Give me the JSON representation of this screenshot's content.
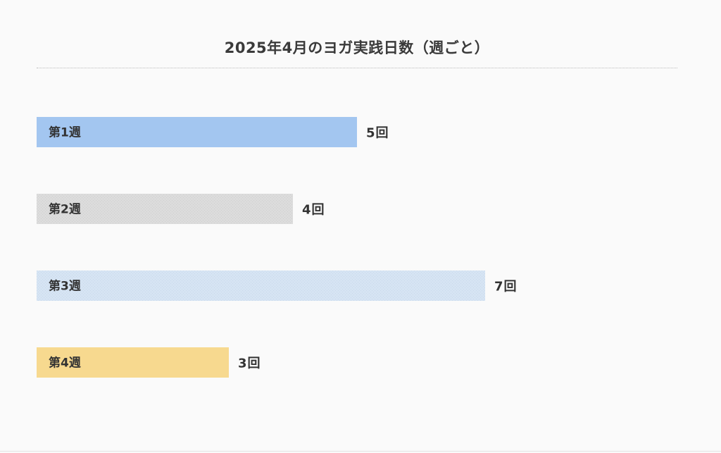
{
  "chart_data": {
    "type": "bar",
    "orientation": "horizontal",
    "title": "2025年4月のヨガ実践日数（週ごと）",
    "categories": [
      "第1週",
      "第2週",
      "第3週",
      "第4週"
    ],
    "values": [
      5,
      4,
      7,
      3
    ],
    "value_labels": [
      "5回",
      "4回",
      "7回",
      "3回"
    ],
    "unit": "回",
    "xlim": [
      0,
      7
    ],
    "grid": false,
    "legend": "none",
    "bar_colors": [
      "#a3c6f0",
      "#dcdcdc",
      "#d6e4f3",
      "#f7d98f"
    ]
  }
}
